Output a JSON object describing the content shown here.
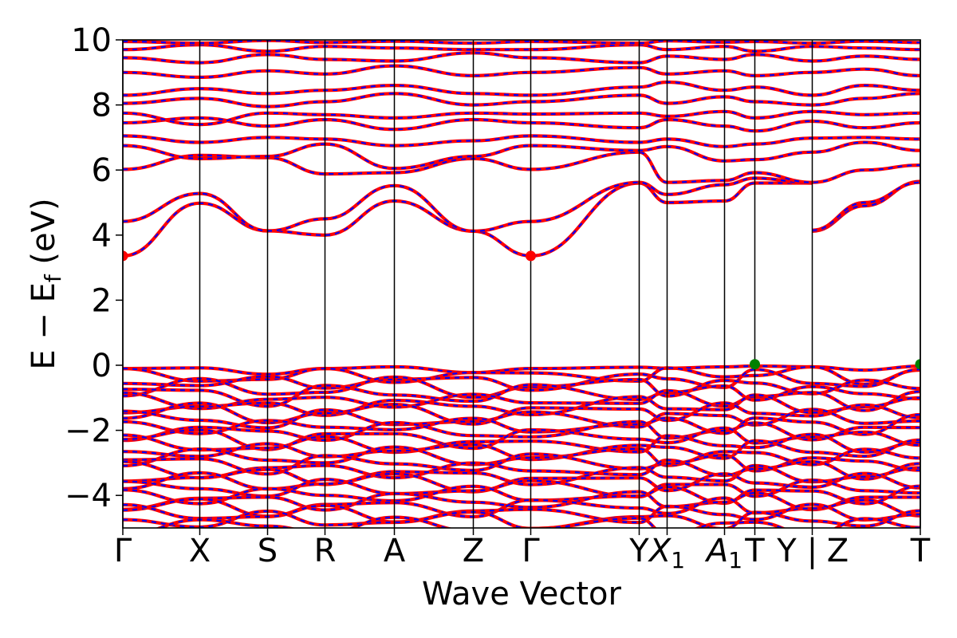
{
  "chart_data": {
    "type": "line",
    "title": "",
    "xlabel": "Wave Vector",
    "ylabel": "E − E_f (eV)",
    "ylabel_parts": {
      "main": "E − E",
      "sub": "f",
      "unit": " (eV)"
    },
    "ylim": [
      -5,
      10
    ],
    "yticks": [
      -4,
      -2,
      0,
      2,
      4,
      6,
      8,
      10
    ],
    "ytick_labels": [
      "−4",
      "−2",
      "0",
      "2",
      "4",
      "6",
      "8",
      "10"
    ],
    "grid": false,
    "legend": "none",
    "kpoint_path": {
      "positions": [
        0,
        0.0965,
        0.1815,
        0.2535,
        0.3405,
        0.4395,
        0.5115,
        0.6475,
        0.6825,
        0.7545,
        0.7925,
        0.8645,
        1.0
      ],
      "labels": [
        {
          "pos": 0.0,
          "main": "Γ",
          "sub": ""
        },
        {
          "pos": 0.0965,
          "main": "X",
          "sub": ""
        },
        {
          "pos": 0.1815,
          "main": "S",
          "sub": ""
        },
        {
          "pos": 0.2535,
          "main": "R",
          "sub": ""
        },
        {
          "pos": 0.3405,
          "main": "A",
          "sub": ""
        },
        {
          "pos": 0.4395,
          "main": "Z",
          "sub": ""
        },
        {
          "pos": 0.5115,
          "main": "Γ",
          "sub": ""
        },
        {
          "pos": 0.6475,
          "main": "Y",
          "sub": ""
        },
        {
          "pos": 0.6825,
          "main": "X",
          "sub": "1"
        },
        {
          "pos": 0.7545,
          "main": "A",
          "sub": "1"
        },
        {
          "pos": 0.7925,
          "main": "T",
          "sub": ""
        },
        {
          "pos": 0.8325,
          "main": "Y",
          "sub": ""
        },
        {
          "pos": 0.8645,
          "main": "|",
          "sub": ""
        },
        {
          "pos": 0.8965,
          "main": "Z",
          "sub": ""
        },
        {
          "pos": 1.0,
          "main": "T",
          "sub": ""
        }
      ]
    },
    "series_styles": {
      "spin_up": {
        "color": "#ff0000",
        "style": "solid"
      },
      "spin_down": {
        "color": "#0000ff",
        "style": "dashed"
      }
    },
    "conduction_bands": [
      {
        "name": "cb1",
        "x": [
          0,
          0.0965,
          0.1815,
          0.2535,
          0.3405,
          0.4395,
          0.5115,
          0.6475,
          0.6825,
          0.7545,
          0.7925,
          0.8645
        ],
        "y": [
          3.36,
          4.98,
          4.13,
          4.0,
          5.05,
          4.12,
          3.36,
          5.6,
          5.0,
          5.05,
          5.6,
          5.6
        ]
      },
      {
        "name": "cb2",
        "x": [
          0,
          0.0965,
          0.1815,
          0.2535,
          0.3405,
          0.4395,
          0.5115,
          0.6475,
          0.6825,
          0.7545,
          0.7925,
          0.8645
        ],
        "y": [
          4.42,
          5.28,
          4.13,
          4.5,
          5.52,
          4.12,
          4.42,
          5.62,
          5.25,
          5.55,
          5.75,
          5.6
        ]
      },
      {
        "name": "cb2b",
        "x": [
          0.8645,
          0.93,
          1.0
        ],
        "y": [
          4.12,
          4.9,
          5.65
        ]
      },
      {
        "name": "cb2c",
        "x": [
          0.8645,
          0.93,
          1.0
        ],
        "y": [
          4.15,
          5.0,
          5.62
        ]
      },
      {
        "name": "cb3",
        "x": [
          0,
          0.0965,
          0.1815,
          0.2535,
          0.3405,
          0.4395,
          0.5115,
          0.6475,
          0.6825,
          0.7545,
          0.7925,
          0.8645,
          0.93,
          1.0
        ],
        "y": [
          6.02,
          6.45,
          6.38,
          5.88,
          5.92,
          6.35,
          6.02,
          6.55,
          5.62,
          5.68,
          5.92,
          5.62,
          6.0,
          6.15
        ]
      },
      {
        "name": "cb4",
        "x": [
          0,
          0.0965,
          0.1815,
          0.2535,
          0.3405,
          0.4395,
          0.5115,
          0.6475,
          0.6825,
          0.7545,
          0.7925,
          0.8645,
          0.93,
          1.0
        ],
        "y": [
          6.75,
          6.35,
          6.42,
          6.8,
          6.05,
          6.42,
          6.75,
          6.6,
          6.72,
          6.28,
          6.32,
          6.55,
          6.85,
          6.6
        ]
      },
      {
        "name": "cb5",
        "x": [
          0,
          0.0965,
          0.1815,
          0.2535,
          0.3405,
          0.4395,
          0.5115,
          0.6475,
          0.6825,
          0.7545,
          0.7925,
          0.8645,
          0.93,
          1.0
        ],
        "y": [
          7.05,
          6.85,
          7.0,
          6.95,
          6.75,
          6.9,
          7.05,
          6.85,
          6.95,
          6.72,
          6.8,
          6.98,
          7.0,
          6.95
        ]
      },
      {
        "name": "cb6",
        "x": [
          0,
          0.0965,
          0.1815,
          0.2535,
          0.3405,
          0.4395,
          0.5115,
          0.6475,
          0.6825,
          0.7545,
          0.7925,
          0.8645,
          0.93,
          1.0
        ],
        "y": [
          7.45,
          7.6,
          7.35,
          7.55,
          7.25,
          7.55,
          7.45,
          7.3,
          7.55,
          7.35,
          7.2,
          7.5,
          7.3,
          7.45
        ]
      },
      {
        "name": "cb7",
        "x": [
          0,
          0.0965,
          0.1815,
          0.2535,
          0.3405,
          0.4395,
          0.5115,
          0.6475,
          0.6825,
          0.7545,
          0.7925,
          0.8645,
          0.93,
          1.0
        ],
        "y": [
          7.75,
          7.4,
          7.75,
          7.7,
          7.6,
          7.75,
          7.72,
          7.75,
          7.65,
          7.8,
          7.6,
          7.8,
          7.7,
          7.75
        ]
      },
      {
        "name": "cb8",
        "x": [
          0,
          0.0965,
          0.1815,
          0.2535,
          0.3405,
          0.4395,
          0.5115,
          0.6475,
          0.6825,
          0.7545,
          0.7925,
          0.8645,
          0.93,
          1.0
        ],
        "y": [
          8.05,
          8.2,
          7.95,
          8.1,
          8.35,
          8.0,
          8.1,
          8.3,
          8.05,
          8.25,
          8.1,
          8.0,
          8.2,
          8.35
        ]
      },
      {
        "name": "cb9",
        "x": [
          0,
          0.0965,
          0.1815,
          0.2535,
          0.3405,
          0.4395,
          0.5115,
          0.6475,
          0.6825,
          0.7545,
          0.7925,
          0.8645,
          0.93,
          1.0
        ],
        "y": [
          8.3,
          8.5,
          8.35,
          8.45,
          8.6,
          8.35,
          8.3,
          8.55,
          8.7,
          8.45,
          8.55,
          8.3,
          8.6,
          8.45
        ]
      },
      {
        "name": "cb10",
        "x": [
          0,
          0.0965,
          0.1815,
          0.2535,
          0.3405,
          0.4395,
          0.5115,
          0.6475,
          0.6825,
          0.7545,
          0.7925,
          0.8645,
          0.93,
          1.0
        ],
        "y": [
          9.0,
          8.85,
          9.05,
          8.95,
          9.2,
          8.9,
          9.0,
          9.15,
          8.95,
          9.05,
          8.9,
          9.0,
          9.1,
          8.9
        ]
      },
      {
        "name": "cb11",
        "x": [
          0,
          0.0965,
          0.1815,
          0.2535,
          0.3405,
          0.4395,
          0.5115,
          0.6475,
          0.6825,
          0.7545,
          0.7925,
          0.8645,
          0.93,
          1.0
        ],
        "y": [
          9.45,
          9.3,
          9.55,
          9.4,
          9.35,
          9.6,
          9.45,
          9.3,
          9.5,
          9.4,
          9.55,
          9.35,
          9.5,
          9.4
        ]
      },
      {
        "name": "cb12",
        "x": [
          0,
          0.0965,
          0.1815,
          0.2535,
          0.3405,
          0.4395,
          0.5115,
          0.6475,
          0.6825,
          0.7545,
          0.7925,
          0.8645,
          0.93,
          1.0
        ],
        "y": [
          9.7,
          9.85,
          9.65,
          9.8,
          9.75,
          9.7,
          9.7,
          9.85,
          9.7,
          9.8,
          9.65,
          9.8,
          9.75,
          9.7
        ]
      },
      {
        "name": "cb13",
        "x": [
          0,
          0.0965,
          0.1815,
          0.2535,
          0.3405,
          0.4395,
          0.5115,
          0.6475,
          0.6825,
          0.7545,
          0.7925,
          0.8645,
          0.93,
          1.0
        ],
        "y": [
          9.95,
          9.9,
          9.98,
          9.92,
          9.96,
          9.9,
          9.95,
          9.9,
          9.97,
          9.93,
          9.95,
          9.9,
          9.96,
          9.92
        ]
      }
    ],
    "valence_bands": {
      "x": [
        0,
        0.0965,
        0.1815,
        0.2535,
        0.3405,
        0.4395,
        0.5115,
        0.6475,
        0.6825,
        0.7545,
        0.7925,
        0.8645,
        0.93,
        1.0
      ],
      "vbm": [
        -0.1,
        -0.08,
        -0.25,
        -0.1,
        -0.05,
        -0.2,
        -0.1,
        -0.05,
        -0.08,
        -0.05,
        0.0,
        -0.05,
        -0.15,
        0.0
      ],
      "count": 26,
      "bottom": -4.95
    },
    "markers": [
      {
        "x": 0.0,
        "y": 3.36,
        "color": "#ff0000",
        "label": "CBM"
      },
      {
        "x": 0.5115,
        "y": 3.36,
        "color": "#ff0000",
        "label": "CBM"
      },
      {
        "x": 0.7925,
        "y": 0.03,
        "color": "#008000",
        "label": "VBM"
      },
      {
        "x": 1.0,
        "y": 0.03,
        "color": "#008000",
        "label": "VBM"
      }
    ]
  }
}
